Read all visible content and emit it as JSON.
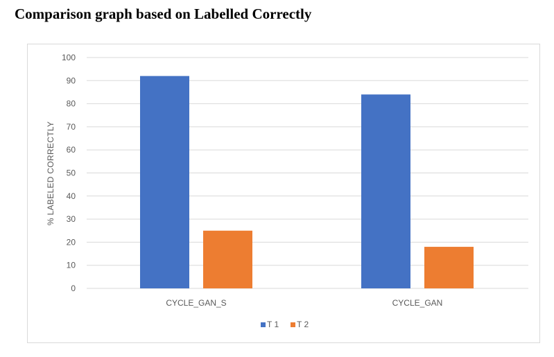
{
  "page_title": "Comparison graph based on Labelled Correctly",
  "chart_data": {
    "type": "bar",
    "title": "",
    "xlabel": "",
    "ylabel": "% LABELED CORRECTLY",
    "ylim": [
      0,
      100
    ],
    "yticks": [
      0,
      10,
      20,
      30,
      40,
      50,
      60,
      70,
      80,
      90,
      100
    ],
    "categories": [
      "CYCLE_GAN_S",
      "CYCLE_GAN"
    ],
    "series": [
      {
        "name": "T 1",
        "color": "#4472c4",
        "values": [
          92,
          84
        ]
      },
      {
        "name": "T 2",
        "color": "#ed7d31",
        "values": [
          25,
          18
        ]
      }
    ],
    "grid": true,
    "legend_position": "bottom"
  }
}
